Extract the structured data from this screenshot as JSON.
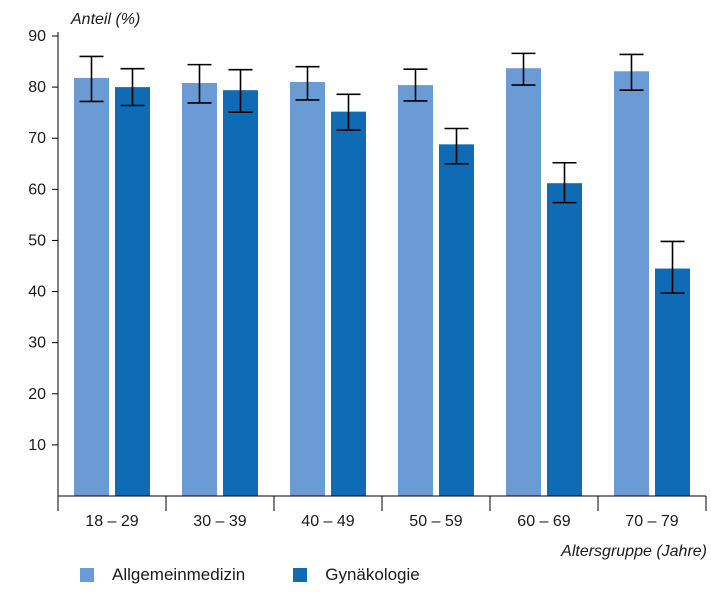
{
  "chart_data": {
    "type": "bar",
    "ylabel": "Anteil (%)",
    "xlabel": "Altersgruppe (Jahre)",
    "categories": [
      "18 – 29",
      "30 – 39",
      "40 – 49",
      "50 – 59",
      "60 – 69",
      "70 – 79"
    ],
    "ylim": [
      0,
      90
    ],
    "yticks": [
      10,
      20,
      30,
      40,
      50,
      60,
      70,
      80,
      90
    ],
    "grid": false,
    "legend_position": "bottom",
    "error_bars": true,
    "series": [
      {
        "name": "Allgemeinmedizin",
        "color": "#6a9bd4",
        "values": [
          81.8,
          80.8,
          81.0,
          80.4,
          83.7,
          83.1
        ],
        "err_low": [
          77.2,
          76.9,
          77.5,
          77.3,
          80.4,
          79.4
        ],
        "err_high": [
          86.0,
          84.4,
          84.0,
          83.5,
          86.6,
          86.4
        ]
      },
      {
        "name": "Gynäkologie",
        "color": "#0f6bb4",
        "values": [
          80.0,
          79.4,
          75.2,
          68.8,
          61.2,
          44.5
        ],
        "err_low": [
          76.4,
          75.1,
          71.6,
          65.0,
          57.4,
          39.7
        ],
        "err_high": [
          83.6,
          83.4,
          78.6,
          71.9,
          65.2,
          49.8
        ]
      }
    ]
  }
}
